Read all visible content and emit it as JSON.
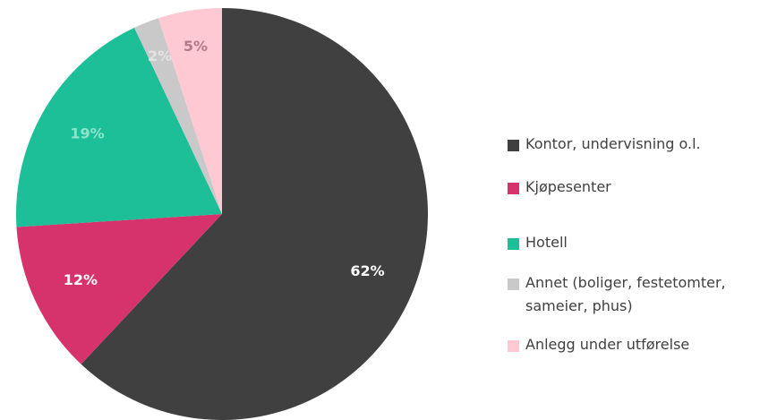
{
  "chart_data": {
    "type": "pie",
    "categories": [
      "Kontor, undervisning o.l.",
      "Kjøpesenter",
      "Hotell",
      "Annet (boliger, festetomter, sameier, phus)",
      "Anlegg under utførelse"
    ],
    "values": [
      62,
      12,
      19,
      2,
      5
    ],
    "value_labels": [
      "62%",
      "12%",
      "19%",
      "2%",
      "5%"
    ],
    "colors": [
      "#404040",
      "#d6336c",
      "#1dbf98",
      "#c9c9c9",
      "#ffc9d3"
    ],
    "label_colors": [
      "#ffffff",
      "#ffffff",
      "#8fe3cb",
      "#e3e3e3",
      "#b57a85"
    ]
  }
}
